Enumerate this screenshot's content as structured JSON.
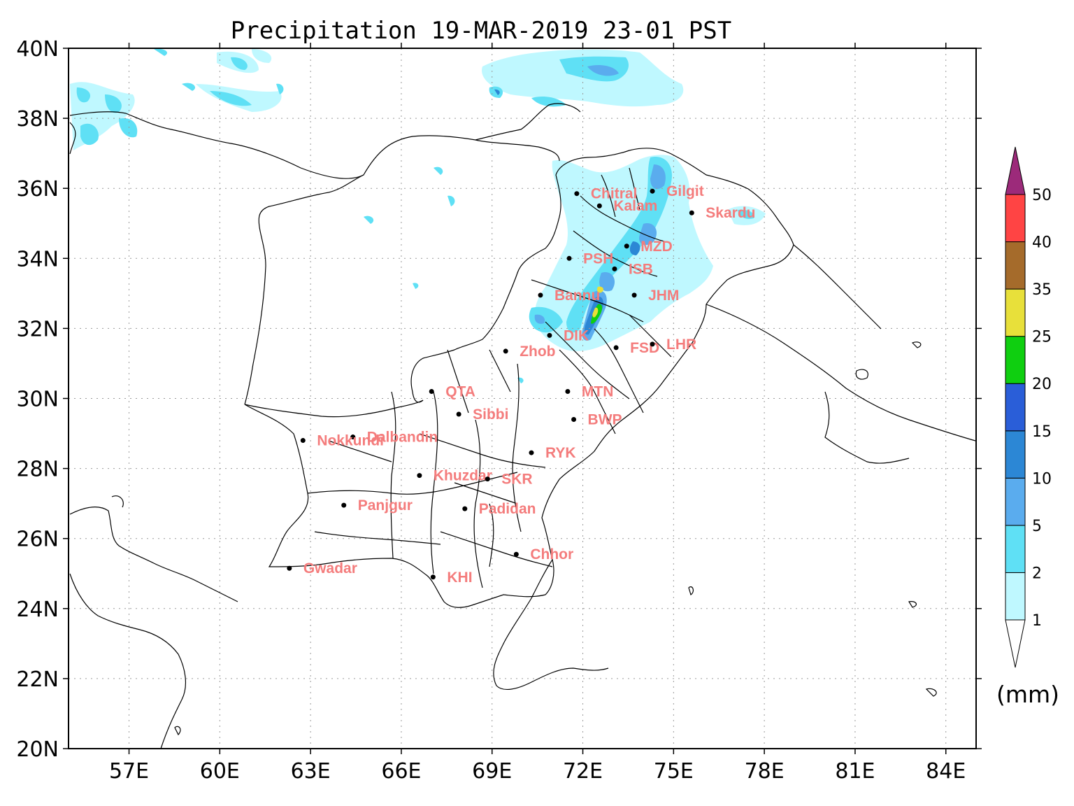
{
  "title": "Precipitation 19-MAR-2019 23-01 PST",
  "units": "(mm)",
  "lat_ticks": [
    {
      "value": 40,
      "label": "40N"
    },
    {
      "value": 38,
      "label": "38N"
    },
    {
      "value": 36,
      "label": "36N"
    },
    {
      "value": 34,
      "label": "34N"
    },
    {
      "value": 32,
      "label": "32N"
    },
    {
      "value": 30,
      "label": "30N"
    },
    {
      "value": 28,
      "label": "28N"
    },
    {
      "value": 26,
      "label": "26N"
    },
    {
      "value": 24,
      "label": "24N"
    },
    {
      "value": 22,
      "label": "22N"
    },
    {
      "value": 20,
      "label": "20N"
    }
  ],
  "lon_ticks": [
    {
      "value": 57,
      "label": "57E"
    },
    {
      "value": 60,
      "label": "60E"
    },
    {
      "value": 63,
      "label": "63E"
    },
    {
      "value": 66,
      "label": "66E"
    },
    {
      "value": 69,
      "label": "69E"
    },
    {
      "value": 72,
      "label": "72E"
    },
    {
      "value": 75,
      "label": "75E"
    },
    {
      "value": 78,
      "label": "78E"
    },
    {
      "value": 81,
      "label": "81E"
    },
    {
      "value": 84,
      "label": "84E"
    }
  ],
  "extent": {
    "lon_min": 55,
    "lon_max": 85,
    "lat_min": 20,
    "lat_max": 40
  },
  "colorbar": {
    "levels": [
      "1",
      "2",
      "5",
      "10",
      "15",
      "20",
      "25",
      "35",
      "40",
      "50"
    ],
    "colors": [
      "#bff8ff",
      "#5fe0f5",
      "#5aacee",
      "#2c87d5",
      "#2a5ed8",
      "#0fcf10",
      "#e8e03a",
      "#a56b2b",
      "#ff4444"
    ],
    "over_color": "#9c2a7a",
    "under_color": "#ffffff"
  },
  "cities": [
    {
      "name": "Chitral",
      "lon": 71.8,
      "lat": 35.85
    },
    {
      "name": "Gilgit",
      "lon": 74.3,
      "lat": 35.92
    },
    {
      "name": "Kalam",
      "lon": 72.55,
      "lat": 35.5
    },
    {
      "name": "Skardu",
      "lon": 75.6,
      "lat": 35.3
    },
    {
      "name": "MZD",
      "lon": 73.45,
      "lat": 34.35
    },
    {
      "name": "PSH",
      "lon": 71.55,
      "lat": 34.0
    },
    {
      "name": "ISB",
      "lon": 73.05,
      "lat": 33.7
    },
    {
      "name": "Bannu",
      "lon": 70.6,
      "lat": 32.95
    },
    {
      "name": "JHM",
      "lon": 73.7,
      "lat": 32.95
    },
    {
      "name": "DIK",
      "lon": 70.9,
      "lat": 31.8
    },
    {
      "name": "FSD",
      "lon": 73.1,
      "lat": 31.45
    },
    {
      "name": "LHR",
      "lon": 74.3,
      "lat": 31.55
    },
    {
      "name": "Zhob",
      "lon": 69.45,
      "lat": 31.35
    },
    {
      "name": "QTA",
      "lon": 67.0,
      "lat": 30.2
    },
    {
      "name": "MTN",
      "lon": 71.5,
      "lat": 30.2
    },
    {
      "name": "Sibbi",
      "lon": 67.9,
      "lat": 29.55
    },
    {
      "name": "BWP",
      "lon": 71.7,
      "lat": 29.4
    },
    {
      "name": "Dalbandin",
      "lon": 64.4,
      "lat": 28.9
    },
    {
      "name": "Nokkundi",
      "lon": 62.75,
      "lat": 28.8
    },
    {
      "name": "RYK",
      "lon": 70.3,
      "lat": 28.45
    },
    {
      "name": "Khuzdar",
      "lon": 66.6,
      "lat": 27.8
    },
    {
      "name": "SKR",
      "lon": 68.85,
      "lat": 27.7
    },
    {
      "name": "Panjgur",
      "lon": 64.1,
      "lat": 26.95
    },
    {
      "name": "Padidan",
      "lon": 68.1,
      "lat": 26.85
    },
    {
      "name": "Chhor",
      "lon": 69.8,
      "lat": 25.55
    },
    {
      "name": "Gwadar",
      "lon": 62.3,
      "lat": 25.15
    },
    {
      "name": "KHI",
      "lon": 67.05,
      "lat": 24.9
    }
  ]
}
